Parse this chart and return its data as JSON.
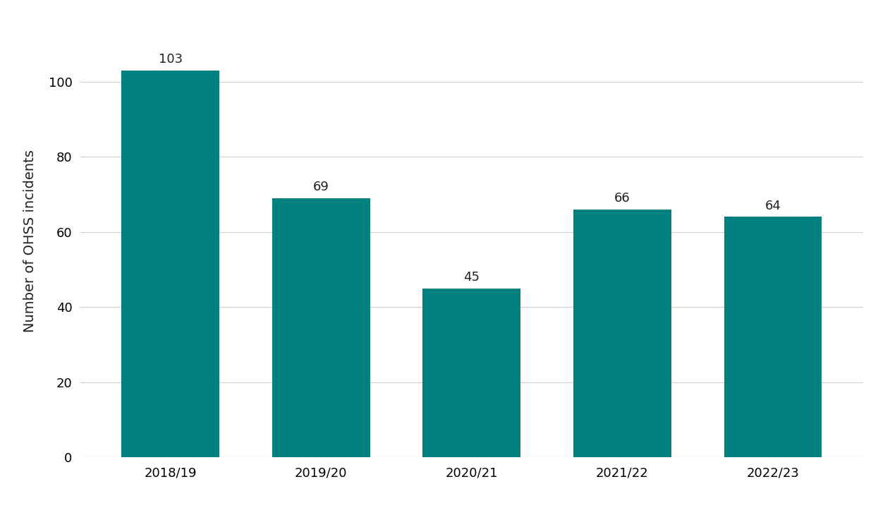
{
  "categories": [
    "2018/19",
    "2019/20",
    "2020/21",
    "2021/22",
    "2022/23"
  ],
  "values": [
    103,
    69,
    45,
    66,
    64
  ],
  "bar_color": "#008080",
  "ylabel": "Number of OHSS incidents",
  "ylim": [
    0,
    115
  ],
  "yticks": [
    0,
    20,
    40,
    60,
    80,
    100
  ],
  "background_color": "#ffffff",
  "grid_color": "#cccccc",
  "label_fontsize": 14,
  "tick_fontsize": 13,
  "bar_label_fontsize": 13,
  "bar_width": 0.65
}
